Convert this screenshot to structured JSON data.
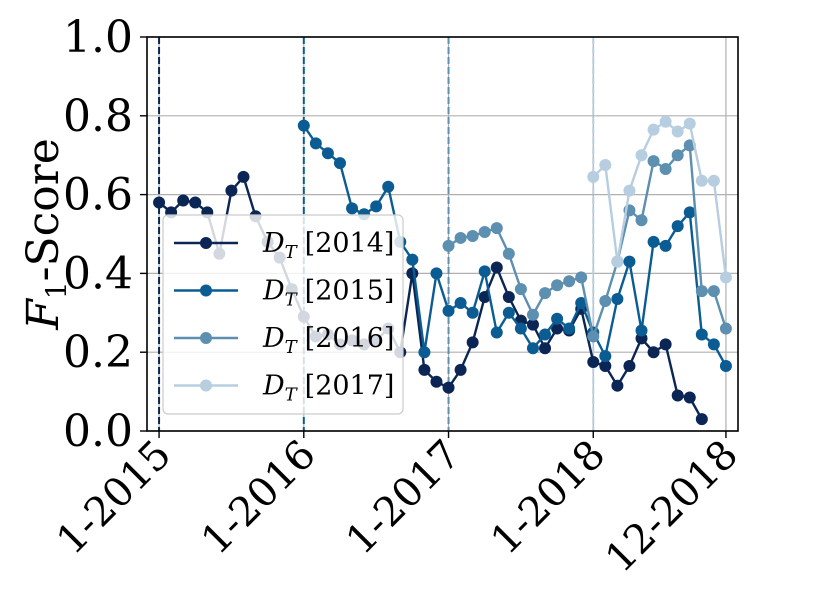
{
  "chart_data": {
    "type": "line",
    "ylabel": "F1-Score",
    "ylabel_main": "F",
    "ylabel_sub": "1",
    "ylabel_rest": "-Score",
    "ylim": [
      0.0,
      1.0
    ],
    "xlim": [
      "2014-12",
      "2019-01"
    ],
    "grid": "horizontal + vertical at ticks",
    "legend_position": "lower-left",
    "y_ticks": [
      "0.0",
      "0.2",
      "0.4",
      "0.6",
      "0.8",
      "1.0"
    ],
    "x_ticks": [
      {
        "label": "1-2015",
        "date": "2015-01"
      },
      {
        "label": "1-2016",
        "date": "2016-01"
      },
      {
        "label": "1-2017",
        "date": "2017-01"
      },
      {
        "label": "1-2018",
        "date": "2018-01"
      },
      {
        "label": "12-2018",
        "date": "2018-12"
      }
    ],
    "vertical_markers": [
      {
        "date": "2015-01",
        "color": "#0b2554"
      },
      {
        "date": "2016-01",
        "color": "#0b5c92"
      },
      {
        "date": "2017-01",
        "color": "#5d8fb0"
      },
      {
        "date": "2018-01",
        "color": "#b7cde0"
      }
    ],
    "series": [
      {
        "name": "D_T [2014]",
        "legend_main": "D",
        "legend_sub": "T",
        "legend_year": "[2014]",
        "color": "#0b2554",
        "start": "2015-01",
        "values": [
          0.58,
          0.555,
          0.585,
          0.58,
          0.555,
          0.45,
          0.61,
          0.645,
          0.545,
          0.48,
          0.44,
          0.36,
          0.29,
          0.24,
          0.245,
          0.22,
          0.23,
          0.22,
          0.23,
          0.26,
          0.2,
          0.4,
          0.155,
          0.125,
          0.11,
          0.155,
          0.225,
          0.34,
          0.415,
          0.34,
          0.28,
          0.27,
          0.21,
          0.26,
          0.255,
          0.31,
          0.175,
          0.165,
          0.115,
          0.165,
          0.235,
          0.2,
          0.22,
          0.09,
          0.085,
          0.03
        ]
      },
      {
        "name": "D_T [2015]",
        "legend_main": "D",
        "legend_sub": "T",
        "legend_year": "[2015]",
        "color": "#0b5c92",
        "start": "2016-01",
        "values": [
          0.775,
          0.73,
          0.705,
          0.68,
          0.565,
          0.55,
          0.57,
          0.62,
          0.48,
          0.435,
          0.2,
          0.4,
          0.305,
          0.325,
          0.3,
          0.405,
          0.25,
          0.3,
          0.26,
          0.21,
          0.245,
          0.285,
          0.26,
          0.325,
          0.25,
          0.19,
          0.335,
          0.43,
          0.255,
          0.48,
          0.47,
          0.52,
          0.555,
          0.245,
          0.22,
          0.165
        ]
      },
      {
        "name": "D_T [2016]",
        "legend_main": "D",
        "legend_sub": "T",
        "legend_year": "[2016]",
        "color": "#5d8fb0",
        "start": "2017-01",
        "values": [
          0.47,
          0.49,
          0.495,
          0.505,
          0.515,
          0.45,
          0.36,
          0.295,
          0.35,
          0.37,
          0.38,
          0.39,
          0.24,
          0.33,
          0.43,
          0.56,
          0.535,
          0.685,
          0.665,
          0.7,
          0.725,
          0.355,
          0.355,
          0.26
        ]
      },
      {
        "name": "D_T [2017]",
        "legend_main": "D",
        "legend_sub": "T",
        "legend_year": "[2017]",
        "color": "#b7cde0",
        "start": "2018-01",
        "values": [
          0.645,
          0.675,
          0.43,
          0.61,
          0.7,
          0.765,
          0.785,
          0.76,
          0.78,
          0.635,
          0.635,
          0.39
        ]
      }
    ]
  }
}
